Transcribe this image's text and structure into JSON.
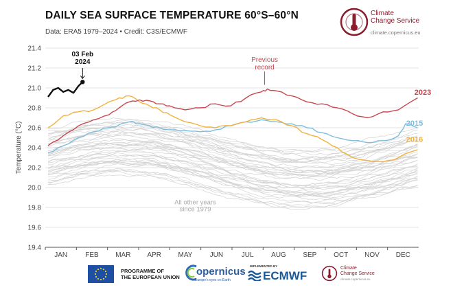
{
  "header": {
    "title": "DAILY SEA SURFACE TEMPERATURE 60°S–60°N",
    "subtitle": "Data: ERA5 1979–2024 • Credit: C3S/ECMWF"
  },
  "branding": {
    "c3s_name_line1": "Climate",
    "c3s_name_line2": "Change Service",
    "c3s_url": "climate.copernicus.eu",
    "brand_color": "#8b1c2e"
  },
  "footer": {
    "eu_line1": "PROGRAMME OF",
    "eu_line2": "THE EUROPEAN UNION",
    "copernicus_name": "opernicus",
    "copernicus_tagline": "Europe's eyes on Earth",
    "ecmwf_implemented": "IMPLEMENTED BY",
    "ecmwf_name": "ECMWF",
    "c3s_line1": "Climate",
    "c3s_line2": "Change Service",
    "c3s_url": "climate.copernicus.eu"
  },
  "chart_data": {
    "type": "line",
    "title": "DAILY SEA SURFACE TEMPERATURE 60°S–60°N",
    "xlabel": "",
    "ylabel": "Temperature (°C)",
    "x_categories": [
      "JAN",
      "FEB",
      "MAR",
      "APR",
      "MAY",
      "JUN",
      "JUL",
      "AUG",
      "SEP",
      "OCT",
      "NOV",
      "DEC"
    ],
    "ylim": [
      19.4,
      21.4
    ],
    "yticks": [
      "21.4",
      "21.2",
      "21.0",
      "20.8",
      "20.6",
      "20.4",
      "20.2",
      "20.0",
      "19.8",
      "19.6",
      "19.4"
    ],
    "grid": "horizontal",
    "colors": {
      "y2024": "#111111",
      "y2023": "#c9474f",
      "y2016": "#f0b23e",
      "y2015": "#7fbcdc",
      "other": "#d3d3d3"
    },
    "series": [
      {
        "name": "2024",
        "color": "#111111",
        "x": [
          0,
          5,
          10,
          15,
          20,
          25,
          30,
          34
        ],
        "values": [
          20.91,
          20.98,
          21.0,
          20.96,
          20.98,
          20.95,
          21.02,
          21.06
        ]
      },
      {
        "name": "2023",
        "color": "#c9474f",
        "x": [
          0,
          15,
          30,
          45,
          60,
          70,
          80,
          90,
          100,
          110,
          120,
          135,
          150,
          165,
          180,
          195,
          210,
          216,
          225,
          240,
          255,
          270,
          285,
          300,
          315,
          330,
          345,
          364
        ],
        "values": [
          20.42,
          20.52,
          20.62,
          20.68,
          20.73,
          20.8,
          20.86,
          20.88,
          20.87,
          20.84,
          20.82,
          20.78,
          20.8,
          20.84,
          20.82,
          20.9,
          20.96,
          20.99,
          20.97,
          20.92,
          20.86,
          20.84,
          20.8,
          20.74,
          20.7,
          20.76,
          20.78,
          20.9
        ]
      },
      {
        "name": "2016",
        "color": "#f0b23e",
        "x": [
          0,
          15,
          30,
          45,
          60,
          70,
          80,
          90,
          100,
          110,
          120,
          135,
          150,
          165,
          180,
          195,
          210,
          225,
          240,
          255,
          270,
          285,
          300,
          315,
          330,
          345,
          364
        ],
        "values": [
          20.6,
          20.72,
          20.76,
          20.78,
          20.86,
          20.9,
          20.92,
          20.86,
          20.82,
          20.78,
          20.73,
          20.66,
          20.62,
          20.6,
          20.62,
          20.66,
          20.7,
          20.68,
          20.62,
          20.54,
          20.48,
          20.4,
          20.3,
          20.27,
          20.26,
          20.3,
          20.38
        ]
      },
      {
        "name": "2015",
        "color": "#7fbcdc",
        "x": [
          0,
          15,
          30,
          45,
          60,
          70,
          80,
          90,
          100,
          110,
          120,
          135,
          150,
          165,
          180,
          195,
          210,
          225,
          240,
          255,
          270,
          285,
          300,
          315,
          330,
          345,
          352,
          364
        ],
        "values": [
          20.35,
          20.42,
          20.5,
          20.56,
          20.6,
          20.63,
          20.66,
          20.64,
          20.62,
          20.6,
          20.58,
          20.57,
          20.56,
          20.58,
          20.62,
          20.66,
          20.68,
          20.66,
          20.64,
          20.6,
          20.55,
          20.5,
          20.47,
          20.45,
          20.47,
          20.52,
          20.64,
          20.6
        ]
      }
    ],
    "other_years_label": "All other years since 1979",
    "annotations": [
      {
        "text": "03 Feb 2024",
        "target_series": "2024",
        "target_x": 34
      },
      {
        "text": "Previous record",
        "target_series": "2023",
        "target_x": 216
      }
    ]
  }
}
